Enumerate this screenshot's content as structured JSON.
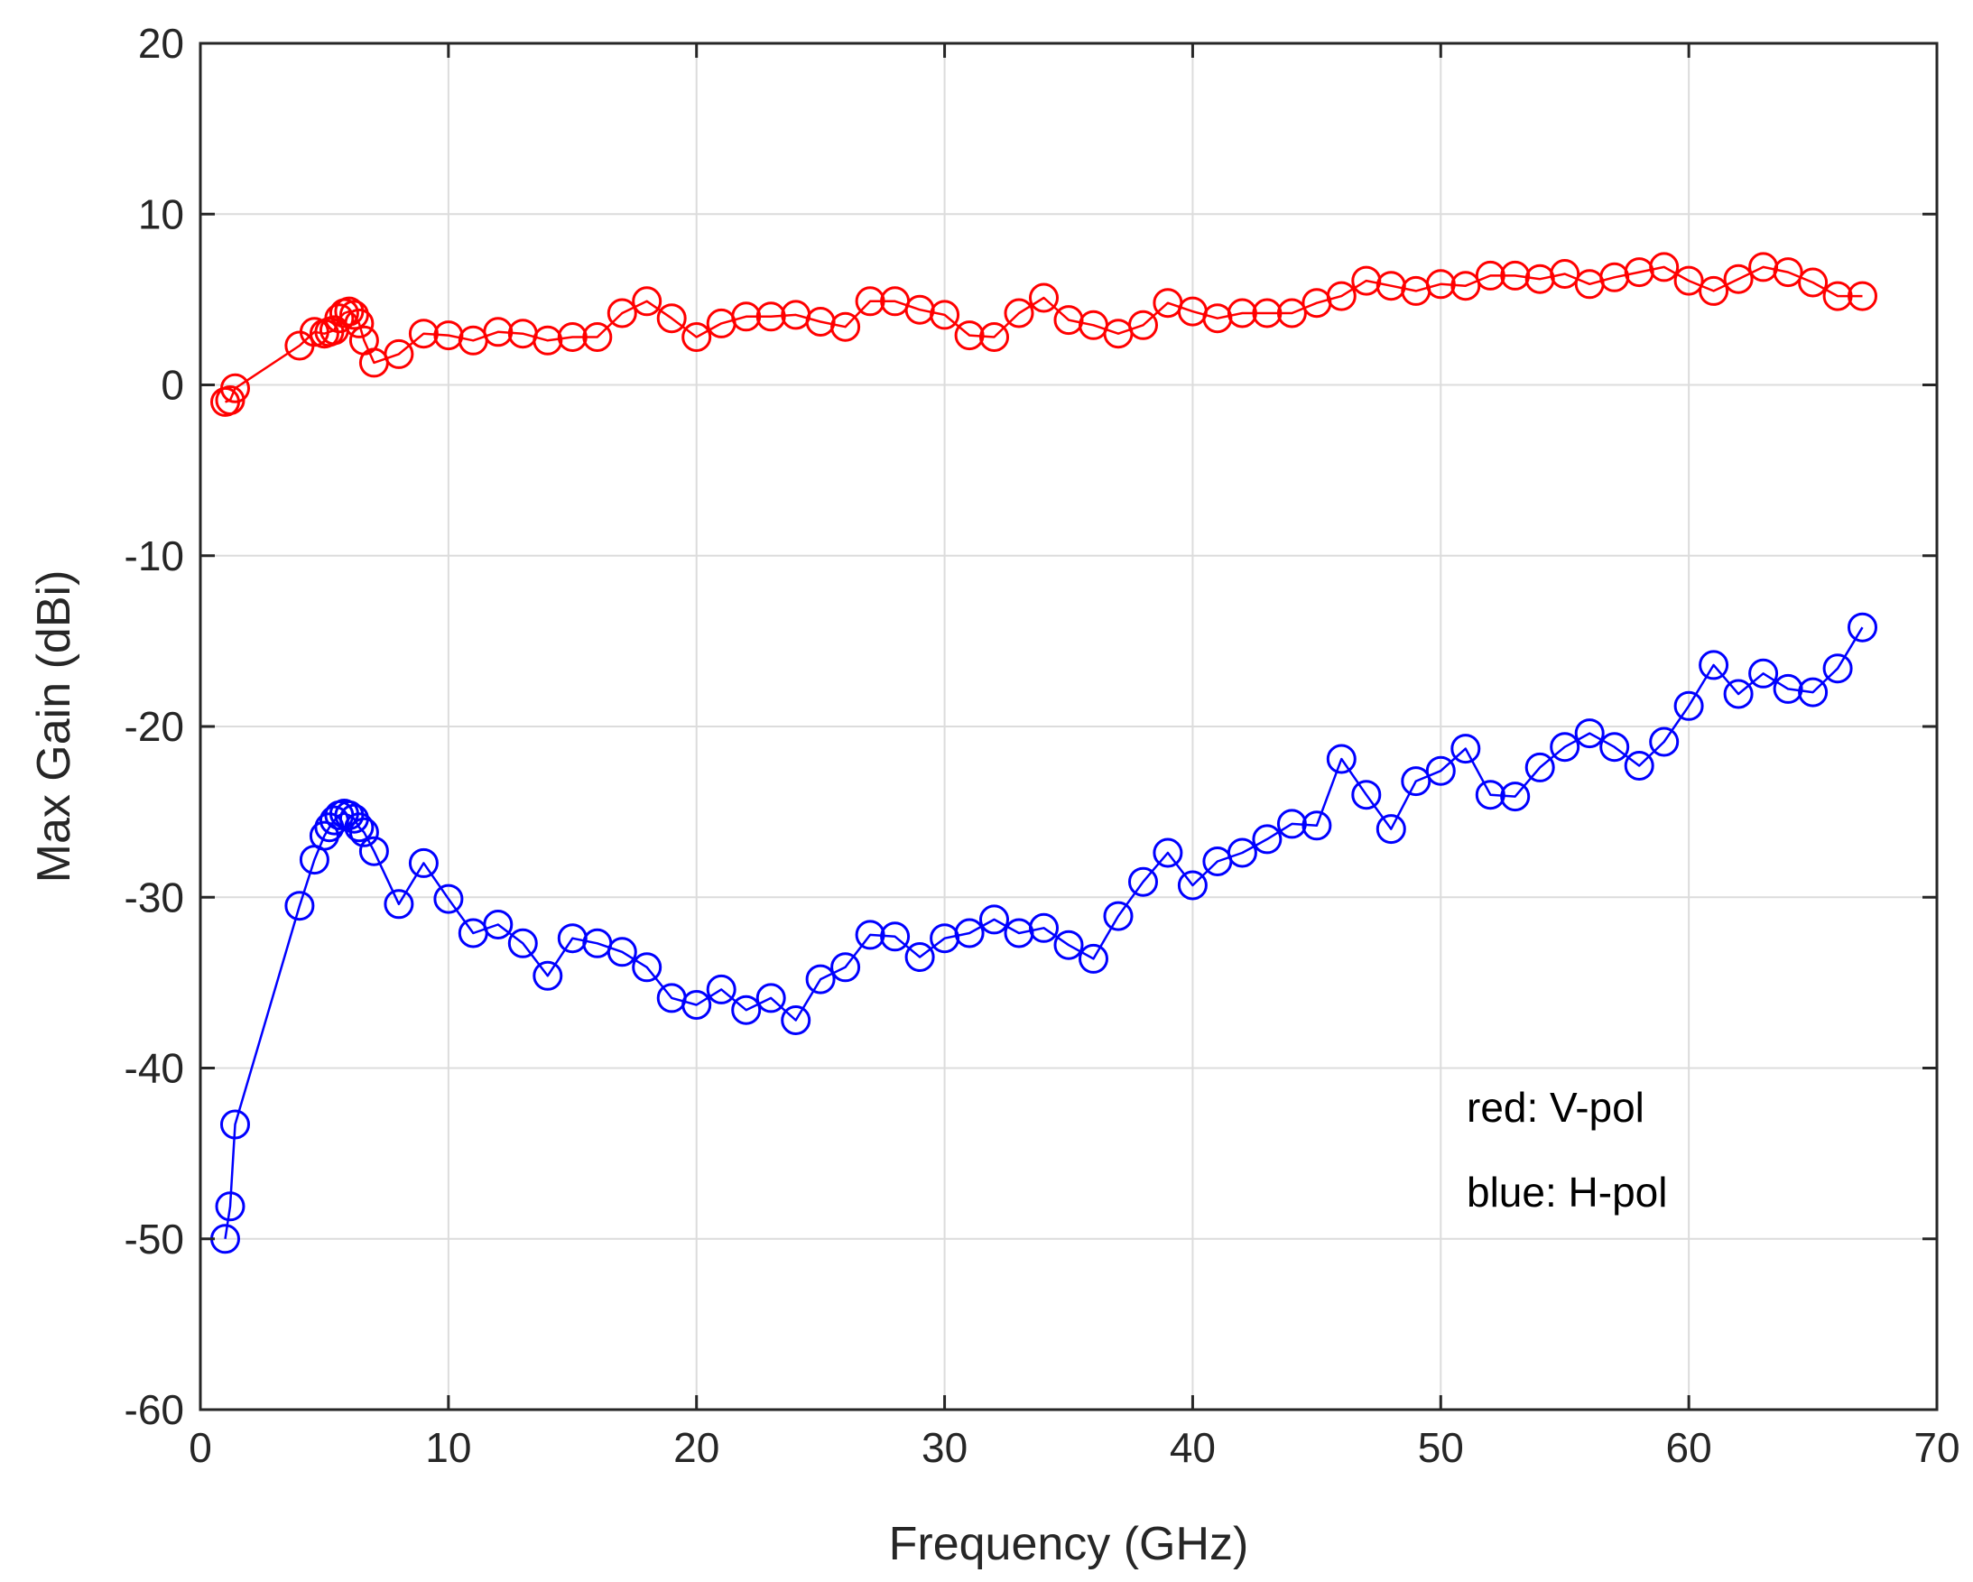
{
  "chart_data": {
    "type": "line",
    "title": "",
    "xlabel": "Frequency (GHz)",
    "ylabel": "Max Gain (dBi)",
    "xlim": [
      0,
      70
    ],
    "ylim": [
      -60,
      20
    ],
    "xticks": [
      0,
      10,
      20,
      30,
      40,
      50,
      60,
      70
    ],
    "yticks": [
      -60,
      -50,
      -40,
      -30,
      -20,
      -10,
      0,
      10,
      20
    ],
    "grid": true,
    "marker": "circle",
    "annotations": [
      "red: V-pol",
      "blue: H-pol"
    ],
    "series": [
      {
        "name": "V-pol",
        "color": "#ff0000",
        "x": [
          1.0,
          1.2,
          1.4,
          4,
          4.6,
          5.0,
          5.2,
          5.4,
          5.6,
          5.8,
          6.0,
          6.2,
          6.4,
          6.6,
          7,
          8,
          9,
          10,
          11,
          12,
          13,
          14,
          15,
          16,
          17,
          18,
          19,
          20,
          21,
          22,
          23,
          24,
          25,
          26,
          27,
          28,
          29,
          30,
          31,
          32,
          33,
          34,
          35,
          36,
          37,
          38,
          39,
          40,
          41,
          42,
          43,
          44,
          45,
          46,
          47,
          48,
          49,
          50,
          51,
          52,
          53,
          54,
          55,
          56,
          57,
          58,
          59,
          60,
          61,
          62,
          63,
          64,
          65,
          66,
          67
        ],
        "y": [
          -1.0,
          -0.9,
          -0.2,
          2.3,
          3.1,
          3.0,
          3.1,
          3.2,
          3.9,
          4.2,
          4.3,
          4.1,
          3.6,
          2.6,
          1.3,
          1.8,
          3.0,
          2.9,
          2.6,
          3.1,
          3.0,
          2.6,
          2.8,
          2.8,
          4.2,
          4.9,
          3.9,
          2.8,
          3.6,
          4.0,
          4.0,
          4.1,
          3.7,
          3.4,
          4.9,
          4.9,
          4.4,
          4.1,
          2.9,
          2.8,
          4.2,
          5.1,
          3.8,
          3.5,
          3.0,
          3.5,
          4.8,
          4.3,
          3.9,
          4.2,
          4.2,
          4.2,
          4.8,
          5.2,
          6.1,
          5.8,
          5.5,
          5.9,
          5.8,
          6.4,
          6.4,
          6.2,
          6.5,
          5.9,
          6.3,
          6.6,
          6.9,
          6.1,
          5.5,
          6.2,
          6.9,
          6.6,
          6.0,
          5.2,
          5.2
        ]
      },
      {
        "name": "H-pol",
        "color": "#0000ff",
        "x": [
          1.0,
          1.2,
          1.4,
          4,
          4.6,
          5.0,
          5.2,
          5.4,
          5.6,
          5.8,
          6.0,
          6.2,
          6.4,
          6.6,
          7,
          8,
          9,
          10,
          11,
          12,
          13,
          14,
          15,
          16,
          17,
          18,
          19,
          20,
          21,
          22,
          23,
          24,
          25,
          26,
          27,
          28,
          29,
          30,
          31,
          32,
          33,
          34,
          35,
          36,
          37,
          38,
          39,
          40,
          41,
          42,
          43,
          44,
          45,
          46,
          47,
          48,
          49,
          50,
          51,
          52,
          53,
          54,
          55,
          56,
          57,
          58,
          59,
          60,
          61,
          62,
          63,
          64,
          65,
          66,
          67
        ],
        "y": [
          -50.0,
          -48.1,
          -43.3,
          -30.5,
          -27.8,
          -26.4,
          -25.9,
          -25.5,
          -25.2,
          -25.1,
          -25.2,
          -25.4,
          -25.9,
          -26.2,
          -27.3,
          -30.4,
          -28.0,
          -30.1,
          -32.1,
          -31.6,
          -32.7,
          -34.6,
          -32.4,
          -32.7,
          -33.2,
          -34.1,
          -35.9,
          -36.3,
          -35.4,
          -36.6,
          -35.9,
          -37.2,
          -34.8,
          -34.1,
          -32.2,
          -32.3,
          -33.5,
          -32.4,
          -32.1,
          -31.3,
          -32.1,
          -31.8,
          -32.8,
          -33.6,
          -31.1,
          -29.1,
          -27.4,
          -29.3,
          -27.9,
          -27.4,
          -26.6,
          -25.7,
          -25.8,
          -21.9,
          -24.0,
          -26.0,
          -23.2,
          -22.6,
          -21.3,
          -24.0,
          -24.1,
          -22.4,
          -21.2,
          -20.4,
          -21.2,
          -22.3,
          -20.9,
          -18.8,
          -16.4,
          -18.1,
          -16.9,
          -17.8,
          -18.0,
          -16.6,
          -14.2
        ]
      }
    ]
  }
}
